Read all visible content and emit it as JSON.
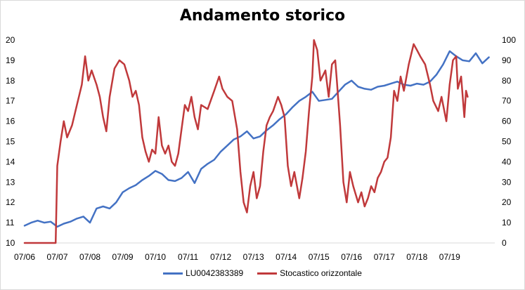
{
  "chart_data": {
    "type": "line",
    "title": "Andamento storico",
    "x_labels": [
      "07/06",
      "07/07",
      "07/08",
      "07/09",
      "07/10",
      "07/11",
      "07/12",
      "07/13",
      "07/14",
      "07/15",
      "07/16",
      "07/17",
      "07/18",
      "07/19"
    ],
    "y_left": {
      "min": 10,
      "max": 20,
      "ticks": [
        10,
        11,
        12,
        13,
        14,
        15,
        16,
        17,
        18,
        19,
        20
      ]
    },
    "y_right": {
      "min": 0,
      "max": 100,
      "ticks": [
        0,
        10,
        20,
        30,
        40,
        50,
        60,
        70,
        80,
        90,
        100
      ]
    },
    "grid": false,
    "legend_position": "bottom",
    "series": [
      {
        "name": "LU0042383389",
        "axis": "left",
        "color": "#4472c4",
        "points": [
          [
            0,
            10.85
          ],
          [
            0.2,
            11.0
          ],
          [
            0.4,
            11.1
          ],
          [
            0.6,
            11.0
          ],
          [
            0.8,
            11.05
          ],
          [
            1.0,
            10.8
          ],
          [
            1.2,
            10.95
          ],
          [
            1.4,
            11.05
          ],
          [
            1.6,
            11.2
          ],
          [
            1.8,
            11.3
          ],
          [
            2.0,
            11.0
          ],
          [
            2.2,
            11.7
          ],
          [
            2.4,
            11.8
          ],
          [
            2.6,
            11.7
          ],
          [
            2.8,
            12.0
          ],
          [
            3.0,
            12.5
          ],
          [
            3.2,
            12.7
          ],
          [
            3.4,
            12.85
          ],
          [
            3.6,
            13.1
          ],
          [
            3.8,
            13.3
          ],
          [
            4.0,
            13.55
          ],
          [
            4.2,
            13.4
          ],
          [
            4.4,
            13.1
          ],
          [
            4.6,
            13.05
          ],
          [
            4.8,
            13.2
          ],
          [
            5.0,
            13.5
          ],
          [
            5.2,
            12.95
          ],
          [
            5.4,
            13.65
          ],
          [
            5.6,
            13.9
          ],
          [
            5.8,
            14.1
          ],
          [
            6.0,
            14.5
          ],
          [
            6.2,
            14.8
          ],
          [
            6.4,
            15.1
          ],
          [
            6.6,
            15.25
          ],
          [
            6.8,
            15.5
          ],
          [
            7.0,
            15.15
          ],
          [
            7.2,
            15.25
          ],
          [
            7.4,
            15.55
          ],
          [
            7.6,
            15.8
          ],
          [
            7.8,
            16.1
          ],
          [
            8.0,
            16.35
          ],
          [
            8.2,
            16.7
          ],
          [
            8.4,
            17.0
          ],
          [
            8.6,
            17.2
          ],
          [
            8.8,
            17.45
          ],
          [
            9.0,
            17.0
          ],
          [
            9.2,
            17.05
          ],
          [
            9.4,
            17.1
          ],
          [
            9.6,
            17.45
          ],
          [
            9.8,
            17.8
          ],
          [
            10.0,
            18.0
          ],
          [
            10.2,
            17.7
          ],
          [
            10.4,
            17.6
          ],
          [
            10.6,
            17.55
          ],
          [
            10.8,
            17.7
          ],
          [
            11.0,
            17.75
          ],
          [
            11.2,
            17.85
          ],
          [
            11.4,
            17.95
          ],
          [
            11.6,
            17.8
          ],
          [
            11.8,
            17.75
          ],
          [
            12.0,
            17.85
          ],
          [
            12.2,
            17.8
          ],
          [
            12.4,
            17.95
          ],
          [
            12.6,
            18.3
          ],
          [
            12.8,
            18.8
          ],
          [
            13.0,
            19.45
          ],
          [
            13.2,
            19.2
          ],
          [
            13.4,
            19.0
          ],
          [
            13.6,
            18.95
          ],
          [
            13.8,
            19.35
          ],
          [
            14.0,
            18.85
          ],
          [
            14.2,
            19.15
          ]
        ]
      },
      {
        "name": "Stocastico orizzontale",
        "axis": "right",
        "color": "#c0393b",
        "points": [
          [
            0,
            0
          ],
          [
            0.5,
            0
          ],
          [
            0.95,
            0
          ],
          [
            1.0,
            38
          ],
          [
            1.1,
            50
          ],
          [
            1.2,
            60
          ],
          [
            1.3,
            52
          ],
          [
            1.45,
            58
          ],
          [
            1.6,
            68
          ],
          [
            1.75,
            78
          ],
          [
            1.85,
            92
          ],
          [
            1.95,
            80
          ],
          [
            2.05,
            85
          ],
          [
            2.2,
            78
          ],
          [
            2.3,
            72
          ],
          [
            2.4,
            62
          ],
          [
            2.5,
            55
          ],
          [
            2.6,
            72
          ],
          [
            2.75,
            86
          ],
          [
            2.9,
            90
          ],
          [
            3.05,
            88
          ],
          [
            3.2,
            80
          ],
          [
            3.3,
            72
          ],
          [
            3.4,
            75
          ],
          [
            3.5,
            68
          ],
          [
            3.6,
            52
          ],
          [
            3.7,
            45
          ],
          [
            3.8,
            40
          ],
          [
            3.9,
            46
          ],
          [
            4.0,
            44
          ],
          [
            4.1,
            62
          ],
          [
            4.2,
            48
          ],
          [
            4.3,
            44
          ],
          [
            4.4,
            48
          ],
          [
            4.5,
            40
          ],
          [
            4.6,
            38
          ],
          [
            4.7,
            44
          ],
          [
            4.8,
            56
          ],
          [
            4.9,
            68
          ],
          [
            5.0,
            65
          ],
          [
            5.1,
            72
          ],
          [
            5.2,
            62
          ],
          [
            5.3,
            56
          ],
          [
            5.4,
            68
          ],
          [
            5.6,
            66
          ],
          [
            5.8,
            75
          ],
          [
            5.95,
            82
          ],
          [
            6.05,
            76
          ],
          [
            6.2,
            72
          ],
          [
            6.35,
            70
          ],
          [
            6.5,
            56
          ],
          [
            6.6,
            35
          ],
          [
            6.7,
            20
          ],
          [
            6.8,
            15
          ],
          [
            6.9,
            28
          ],
          [
            7.0,
            35
          ],
          [
            7.1,
            22
          ],
          [
            7.2,
            28
          ],
          [
            7.3,
            45
          ],
          [
            7.4,
            58
          ],
          [
            7.5,
            62
          ],
          [
            7.6,
            65
          ],
          [
            7.75,
            72
          ],
          [
            7.85,
            68
          ],
          [
            7.95,
            62
          ],
          [
            8.0,
            50
          ],
          [
            8.05,
            38
          ],
          [
            8.15,
            28
          ],
          [
            8.25,
            35
          ],
          [
            8.4,
            22
          ],
          [
            8.5,
            32
          ],
          [
            8.6,
            45
          ],
          [
            8.7,
            65
          ],
          [
            8.8,
            82
          ],
          [
            8.85,
            100
          ],
          [
            8.95,
            95
          ],
          [
            9.05,
            80
          ],
          [
            9.2,
            85
          ],
          [
            9.3,
            72
          ],
          [
            9.4,
            88
          ],
          [
            9.5,
            90
          ],
          [
            9.55,
            80
          ],
          [
            9.65,
            58
          ],
          [
            9.75,
            30
          ],
          [
            9.85,
            20
          ],
          [
            9.95,
            35
          ],
          [
            10.05,
            28
          ],
          [
            10.2,
            20
          ],
          [
            10.3,
            25
          ],
          [
            10.4,
            18
          ],
          [
            10.5,
            22
          ],
          [
            10.6,
            28
          ],
          [
            10.7,
            25
          ],
          [
            10.8,
            32
          ],
          [
            10.9,
            35
          ],
          [
            11.0,
            40
          ],
          [
            11.1,
            42
          ],
          [
            11.2,
            52
          ],
          [
            11.3,
            75
          ],
          [
            11.4,
            70
          ],
          [
            11.5,
            82
          ],
          [
            11.6,
            75
          ],
          [
            11.75,
            88
          ],
          [
            11.9,
            98
          ],
          [
            12.0,
            95
          ],
          [
            12.1,
            92
          ],
          [
            12.25,
            88
          ],
          [
            12.4,
            78
          ],
          [
            12.5,
            70
          ],
          [
            12.65,
            65
          ],
          [
            12.75,
            72
          ],
          [
            12.9,
            60
          ],
          [
            13.0,
            78
          ],
          [
            13.1,
            90
          ],
          [
            13.2,
            92
          ],
          [
            13.25,
            76
          ],
          [
            13.35,
            82
          ],
          [
            13.45,
            62
          ],
          [
            13.5,
            75
          ],
          [
            13.55,
            72
          ]
        ]
      }
    ]
  }
}
